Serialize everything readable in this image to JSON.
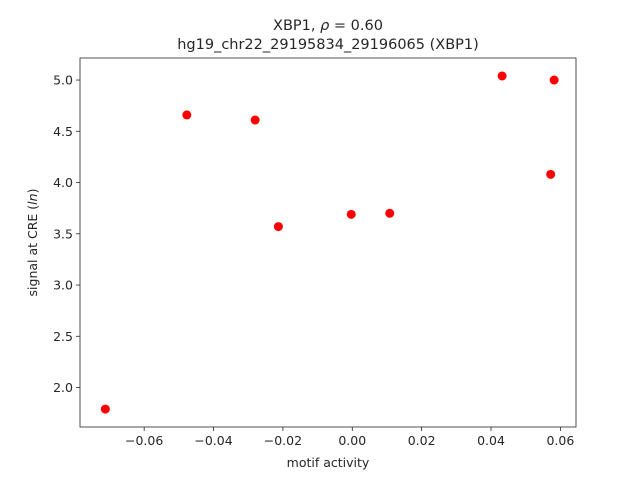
{
  "chart_data": {
    "type": "scatter",
    "title_line1_prefix": "XBP1, ",
    "title_rho_symbol": "ρ",
    "title_rho_rest": " = 0.60",
    "title_line2": "hg19_chr22_29195834_29196065 (XBP1)",
    "xlabel": "motif activity",
    "ylabel_prefix": "signal at CRE (",
    "ylabel_italic": "ln",
    "ylabel_suffix": ")",
    "xlim": [
      -0.0785,
      0.0645
    ],
    "ylim": [
      1.615,
      5.215
    ],
    "xticks": [
      -0.06,
      -0.04,
      -0.02,
      0.0,
      0.02,
      0.04,
      0.06
    ],
    "xtick_labels": [
      "−0.06",
      "−0.04",
      "−0.02",
      "0.00",
      "0.02",
      "0.04",
      "0.06"
    ],
    "yticks": [
      2.0,
      2.5,
      3.0,
      3.5,
      4.0,
      4.5,
      5.0
    ],
    "ytick_labels": [
      "2.0",
      "2.5",
      "3.0",
      "3.5",
      "4.0",
      "4.5",
      "5.0"
    ],
    "grid": false,
    "marker_color": "#ff0000",
    "points": [
      {
        "x": -0.0712,
        "y": 1.79
      },
      {
        "x": -0.0477,
        "y": 4.66
      },
      {
        "x": -0.028,
        "y": 4.61
      },
      {
        "x": -0.0213,
        "y": 3.57
      },
      {
        "x": -0.0003,
        "y": 3.69
      },
      {
        "x": 0.0108,
        "y": 3.7
      },
      {
        "x": 0.0432,
        "y": 5.04
      },
      {
        "x": 0.0572,
        "y": 4.08
      },
      {
        "x": 0.0582,
        "y": 5.0
      }
    ]
  }
}
